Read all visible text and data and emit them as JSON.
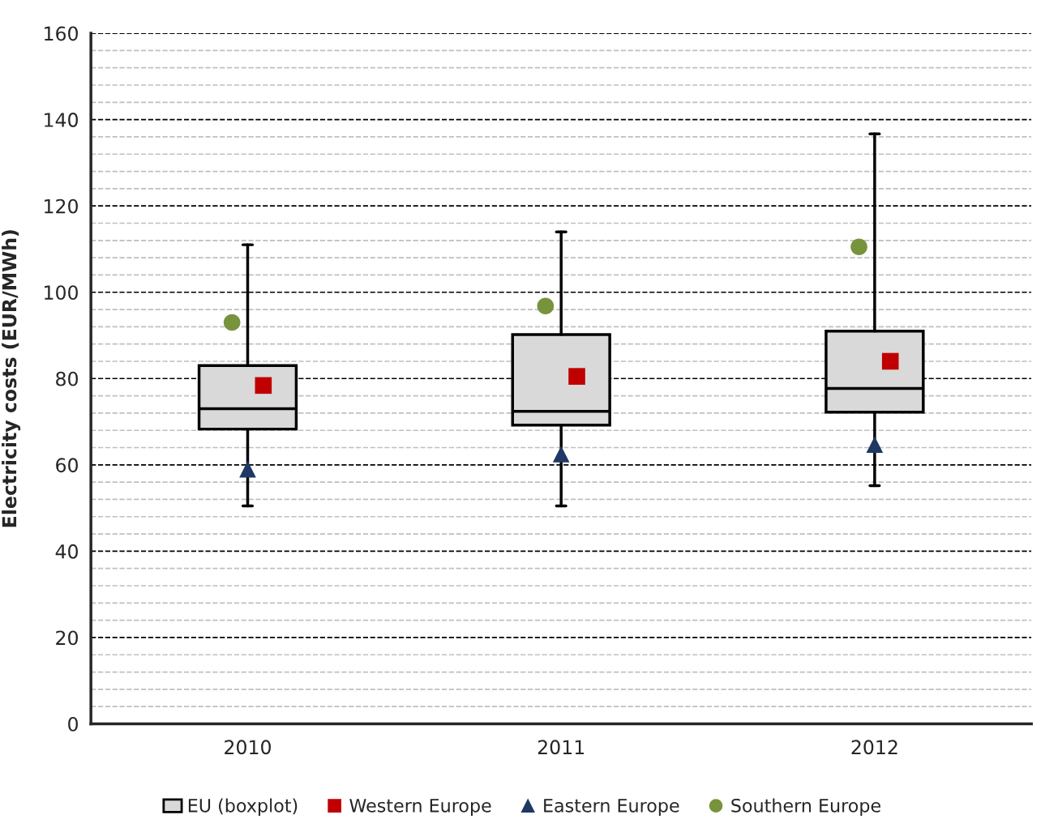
{
  "chart_data": {
    "type": "box",
    "ylabel": "Electricity costs (EUR/MWh)",
    "categories": [
      "2010",
      "2011",
      "2012"
    ],
    "ylim": [
      0,
      160
    ],
    "yticks": [
      0,
      {
        "value": 4,
        "label": null
      },
      {
        "value": 8,
        "label": null
      },
      {
        "value": 12,
        "label": null
      },
      {
        "value": 16,
        "label": null
      },
      20,
      {
        "value": 24,
        "label": null
      },
      {
        "value": 28,
        "label": null
      },
      {
        "value": 32,
        "label": null
      },
      {
        "value": 36,
        "label": null
      },
      40,
      {
        "value": 44,
        "label": null
      },
      {
        "value": 48,
        "label": null
      },
      {
        "value": 52,
        "label": null
      },
      {
        "value": 56,
        "label": null
      },
      60,
      {
        "value": 64,
        "label": null
      },
      {
        "value": 68,
        "label": null
      },
      {
        "value": 72,
        "label": null
      },
      {
        "value": 76,
        "label": null
      },
      80,
      {
        "value": 84,
        "label": null
      },
      {
        "value": 88,
        "label": null
      },
      {
        "value": 92,
        "label": null
      },
      {
        "value": 96,
        "label": null
      },
      100,
      {
        "value": 104,
        "label": null
      },
      {
        "value": 108,
        "label": null
      },
      {
        "value": 112,
        "label": null
      },
      {
        "value": 116,
        "label": null
      },
      120,
      {
        "value": 124,
        "label": null
      },
      {
        "value": 128,
        "label": null
      },
      {
        "value": 132,
        "label": null
      },
      {
        "value": 136,
        "label": null
      },
      140,
      {
        "value": 144,
        "label": null
      },
      {
        "value": 148,
        "label": null
      },
      {
        "value": 152,
        "label": null
      },
      {
        "value": 156,
        "label": null
      },
      160
    ],
    "grid": "y",
    "legend": "bottom",
    "series": [
      {
        "name": "EU (boxplot)",
        "type": "box",
        "color": "#d9d9d9",
        "boxes": [
          {
            "low": 50.5,
            "q1": 68.3,
            "median": 73,
            "q3": 83,
            "high": 111
          },
          {
            "low": 50.5,
            "q1": 69.2,
            "median": 72.4,
            "q3": 90.2,
            "high": 114
          },
          {
            "low": 55.2,
            "q1": 72.2,
            "median": 77.7,
            "q3": 91,
            "high": 136.7
          }
        ]
      },
      {
        "name": "Western Europe",
        "type": "scatter",
        "marker": "square",
        "color": "#c00000",
        "values": [
          78.4,
          80.5,
          84
        ]
      },
      {
        "name": "Eastern Europe",
        "type": "scatter",
        "marker": "triangle",
        "color": "#1f3864",
        "values": [
          59,
          62.5,
          64.7
        ]
      },
      {
        "name": "Southern Europe",
        "type": "scatter",
        "marker": "circle",
        "color": "#77933c",
        "values": [
          93,
          96.8,
          110.5
        ]
      }
    ]
  }
}
